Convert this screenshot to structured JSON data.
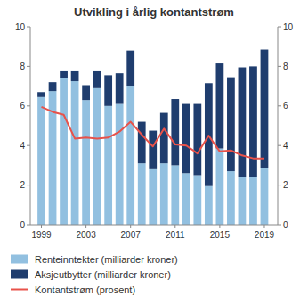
{
  "chart_data": {
    "type": "bar",
    "title": "Utvikling i årlig kontantstrøm",
    "x": [
      1999,
      2000,
      2001,
      2002,
      2003,
      2004,
      2005,
      2006,
      2007,
      2008,
      2009,
      2010,
      2011,
      2012,
      2013,
      2014,
      2015,
      2016,
      2017,
      2018,
      2019
    ],
    "series": [
      {
        "name": "Renteinntekter (milliarder kroner)",
        "type": "bar",
        "color": "#92c0e0",
        "values": [
          6.45,
          6.75,
          7.4,
          7.25,
          6.3,
          6.9,
          6.0,
          6.1,
          7.0,
          3.1,
          2.8,
          3.1,
          3.0,
          2.6,
          2.5,
          1.95,
          3.85,
          2.7,
          2.4,
          2.4,
          2.85
        ]
      },
      {
        "name": "Aksjeutbytter (milliarder kroner)",
        "type": "bar",
        "color": "#1f3d6e",
        "values": [
          0.25,
          0.45,
          0.35,
          0.5,
          0.75,
          0.85,
          1.55,
          1.55,
          1.8,
          2.1,
          1.95,
          2.55,
          3.35,
          3.5,
          3.6,
          5.2,
          4.3,
          4.75,
          5.55,
          5.6,
          6.0
        ]
      },
      {
        "name": "Kontantstrøm (prosent)",
        "type": "line",
        "axis": "y2",
        "color": "#e8524a",
        "values": [
          5.95,
          5.7,
          5.55,
          4.35,
          4.4,
          4.35,
          4.4,
          4.7,
          5.2,
          4.55,
          3.95,
          4.85,
          4.05,
          4.0,
          3.6,
          4.5,
          3.7,
          3.75,
          3.5,
          3.35,
          3.35
        ]
      }
    ],
    "stacked": true,
    "xlim": [
      1998,
      2020.2
    ],
    "xticks": [
      1999,
      2003,
      2007,
      2011,
      2015,
      2019
    ],
    "ylim": [
      0,
      10
    ],
    "yticks": [
      0,
      2,
      4,
      6,
      8,
      10
    ],
    "y2lim": [
      0,
      10
    ],
    "y2ticks": [
      0,
      2,
      4,
      6,
      8,
      10
    ],
    "grid": false,
    "legend": "bottom"
  }
}
